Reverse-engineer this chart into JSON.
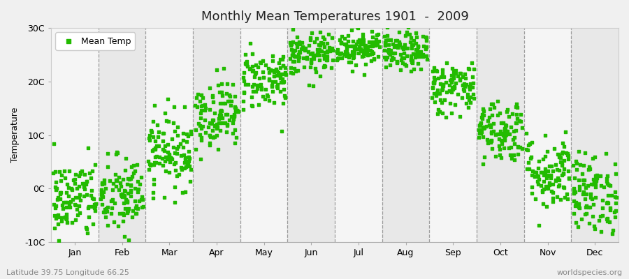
{
  "title": "Monthly Mean Temperatures 1901  -  2009",
  "ylabel": "Temperature",
  "subtitle_left": "Latitude 39.75 Longitude 66.25",
  "subtitle_right": "worldspecies.org",
  "legend_label": "Mean Temp",
  "dot_color": "#22bb00",
  "dot_size": 8,
  "background_color": "#f0f0f0",
  "plot_bg_light": "#f5f5f5",
  "plot_bg_dark": "#e8e8e8",
  "ylim": [
    -10,
    30
  ],
  "yticks": [
    -10,
    0,
    10,
    20,
    30
  ],
  "ytick_labels": [
    "-10C",
    "0C",
    "10C",
    "20C",
    "30C"
  ],
  "months": [
    "Jan",
    "Feb",
    "Mar",
    "Apr",
    "May",
    "Jun",
    "Jul",
    "Aug",
    "Sep",
    "Oct",
    "Nov",
    "Dec"
  ],
  "month_means": [
    -2.0,
    -1.5,
    7.0,
    14.0,
    20.5,
    25.0,
    26.5,
    25.5,
    19.0,
    11.0,
    3.0,
    -1.0
  ],
  "month_stds": [
    3.8,
    3.8,
    3.5,
    3.2,
    2.8,
    2.0,
    1.8,
    1.8,
    2.5,
    3.0,
    3.5,
    3.8
  ],
  "n_years": 109,
  "seed": 42,
  "vline_color": "#888888",
  "title_fontsize": 13,
  "axis_fontsize": 9,
  "legend_fontsize": 9,
  "subtitle_fontsize": 8
}
